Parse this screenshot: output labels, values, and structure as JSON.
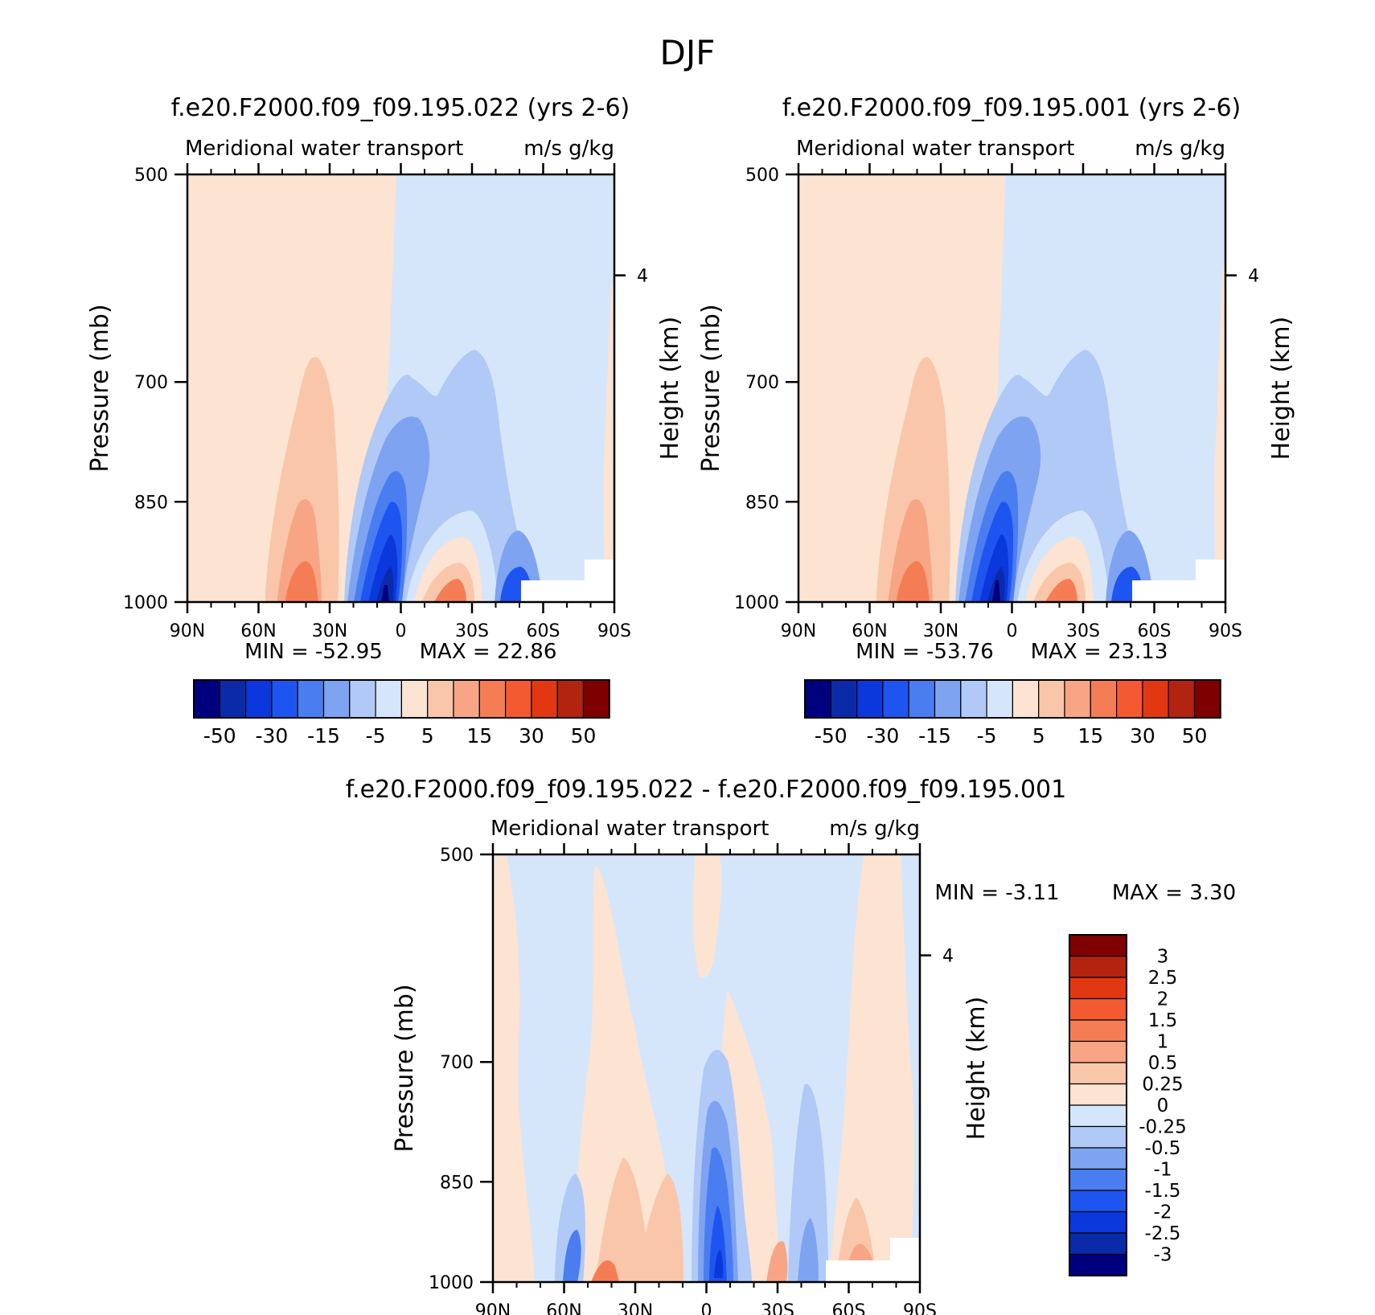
{
  "page": {
    "title": "DJF",
    "colors": {
      "blues": [
        "#00007f",
        "#0a2aaa",
        "#0a38dc",
        "#1e55f0",
        "#4a7df0",
        "#7ea3f0",
        "#b0c9f7",
        "#d6e6fa"
      ],
      "reds": [
        "#fce3d2",
        "#f9c6aa",
        "#f7a585",
        "#f57d55",
        "#f45a32",
        "#e23812",
        "#b22410",
        "#7f0000"
      ],
      "white": "#ffffff"
    }
  },
  "panels": [
    {
      "id": "control",
      "title": "f.e20.F2000.f09_f09.195.022 (yrs 2-6)",
      "left_label": "Meridional water transport",
      "right_label": "m/s g/kg",
      "min_label": "MIN = -52.95",
      "max_label": "MAX = 22.86",
      "ylabel": "Pressure (mb)",
      "y2label": "Height (km)",
      "colorbar_labels": [
        "-50",
        "-30",
        "-15",
        "-5",
        "5",
        "15",
        "30",
        "50"
      ]
    },
    {
      "id": "test",
      "title": "f.e20.F2000.f09_f09.195.001 (yrs 2-6)",
      "left_label": "Meridional water transport",
      "right_label": "m/s g/kg",
      "min_label": "MIN = -53.76",
      "max_label": "MAX = 23.13",
      "ylabel": "Pressure (mb)",
      "y2label": "Height (km)",
      "colorbar_labels": [
        "-50",
        "-30",
        "-15",
        "-5",
        "5",
        "15",
        "30",
        "50"
      ]
    },
    {
      "id": "difference",
      "title": "f.e20.F2000.f09_f09.195.022 - f.e20.F2000.f09_f09.195.001",
      "left_label": "Meridional water transport",
      "right_label": "m/s g/kg",
      "min_label": "MIN = -3.11",
      "max_label": "MAX = 3.30",
      "ylabel": "Pressure (mb)",
      "y2label": "Height (km)",
      "colorbar_labels": [
        "3",
        "2.5",
        "2",
        "1.5",
        "1",
        "0.5",
        "0.25",
        "0",
        "-0.25",
        "-0.5",
        "-1",
        "-1.5",
        "-2",
        "-2.5",
        "-3"
      ]
    }
  ],
  "chart_data": [
    {
      "type": "heatmap",
      "title": "f.e20.F2000.f09_f09.195.022 (yrs 2-6)",
      "ylabel": "Pressure (mb)",
      "y2label": "Height (km)",
      "x_ticks": [
        "90N",
        "60N",
        "30N",
        "0",
        "30S",
        "60S",
        "90S"
      ],
      "x_values": [
        90,
        60,
        30,
        0,
        -30,
        -60,
        -90
      ],
      "y_ticks": [
        "500",
        "700",
        "850",
        "1000"
      ],
      "y_values": [
        500,
        700,
        850,
        1000
      ],
      "y2_ticks": [
        "4"
      ],
      "levels": [
        -50,
        -40,
        -30,
        -20,
        -15,
        -10,
        -5,
        0,
        5,
        10,
        15,
        20,
        30,
        40,
        50
      ],
      "min": -52.95,
      "max": 22.86,
      "features": [
        {
          "lat": 85,
          "p_top": 500,
          "p_bottom": 1000,
          "value": 1,
          "note": "weak positive north of about 10S above 700 mb"
        },
        {
          "lat": -40,
          "p_top": 500,
          "p_bottom": 1000,
          "value": -1,
          "note": "weak negative south of about 10S"
        },
        {
          "lat": 40,
          "p_top": 720,
          "p_bottom": 1000,
          "value": 8
        },
        {
          "lat": 43,
          "p_top": 880,
          "p_bottom": 1000,
          "value": 16
        },
        {
          "lat": 10,
          "p_top": 710,
          "p_bottom": 1000,
          "value": -10
        },
        {
          "lat": 10,
          "p_top": 830,
          "p_bottom": 1000,
          "value": -30
        },
        {
          "lat": 10,
          "p_top": 950,
          "p_bottom": 1000,
          "value": -50
        },
        {
          "lat": -38,
          "p_top": 700,
          "p_bottom": 1000,
          "value": -8
        },
        {
          "lat": -20,
          "p_top": 925,
          "p_bottom": 1000,
          "value": 20
        },
        {
          "lat": -45,
          "p_top": 925,
          "p_bottom": 1000,
          "value": -20
        }
      ]
    },
    {
      "type": "heatmap",
      "title": "f.e20.F2000.f09_f09.195.001 (yrs 2-6)",
      "ylabel": "Pressure (mb)",
      "y2label": "Height (km)",
      "x_ticks": [
        "90N",
        "60N",
        "30N",
        "0",
        "30S",
        "60S",
        "90S"
      ],
      "x_values": [
        90,
        60,
        30,
        0,
        -30,
        -60,
        -90
      ],
      "y_ticks": [
        "500",
        "700",
        "850",
        "1000"
      ],
      "y_values": [
        500,
        700,
        850,
        1000
      ],
      "y2_ticks": [
        "4"
      ],
      "levels": [
        -50,
        -40,
        -30,
        -20,
        -15,
        -10,
        -5,
        0,
        5,
        10,
        15,
        20,
        30,
        40,
        50
      ],
      "min": -53.76,
      "max": 23.13,
      "features": [
        {
          "lat": 85,
          "p_top": 500,
          "p_bottom": 1000,
          "value": 1
        },
        {
          "lat": -40,
          "p_top": 500,
          "p_bottom": 1000,
          "value": -1
        },
        {
          "lat": 40,
          "p_top": 720,
          "p_bottom": 1000,
          "value": 8
        },
        {
          "lat": 43,
          "p_top": 880,
          "p_bottom": 1000,
          "value": 16
        },
        {
          "lat": 10,
          "p_top": 710,
          "p_bottom": 1000,
          "value": -10
        },
        {
          "lat": 10,
          "p_top": 830,
          "p_bottom": 1000,
          "value": -30
        },
        {
          "lat": 10,
          "p_top": 950,
          "p_bottom": 1000,
          "value": -50
        },
        {
          "lat": -38,
          "p_top": 700,
          "p_bottom": 1000,
          "value": -8
        },
        {
          "lat": -20,
          "p_top": 925,
          "p_bottom": 1000,
          "value": 20
        },
        {
          "lat": -45,
          "p_top": 925,
          "p_bottom": 1000,
          "value": -20
        }
      ]
    },
    {
      "type": "heatmap",
      "title": "f.e20.F2000.f09_f09.195.022 - f.e20.F2000.f09_f09.195.001",
      "ylabel": "Pressure (mb)",
      "y2label": "Height (km)",
      "x_ticks": [
        "90N",
        "60N",
        "30N",
        "0",
        "30S",
        "60S",
        "90S"
      ],
      "x_values": [
        90,
        60,
        30,
        0,
        -30,
        -60,
        -90
      ],
      "y_ticks": [
        "500",
        "700",
        "850",
        "1000"
      ],
      "y_values": [
        500,
        700,
        850,
        1000
      ],
      "y2_ticks": [
        "4"
      ],
      "levels": [
        -3,
        -2.5,
        -2,
        -1.5,
        -1,
        -0.5,
        -0.25,
        0,
        0.25,
        0.5,
        1,
        1.5,
        2,
        2.5,
        3
      ],
      "min": -3.11,
      "max": 3.3,
      "features": [
        {
          "lat": 0,
          "p_top": 500,
          "p_bottom": 1000,
          "value": -0.1
        },
        {
          "lat": 83,
          "p_top": 500,
          "p_bottom": 1000,
          "value": 0.1
        },
        {
          "lat": 35,
          "p_top": 540,
          "p_bottom": 1000,
          "value": 0.1
        },
        {
          "lat": 0,
          "p_top": 500,
          "p_bottom": 750,
          "value": 0.1
        },
        {
          "lat": -67,
          "p_top": 500,
          "p_bottom": 1000,
          "value": 0.1
        },
        {
          "lat": 33,
          "p_top": 860,
          "p_bottom": 1000,
          "value": 0.4
        },
        {
          "lat": 50,
          "p_top": 890,
          "p_bottom": 1000,
          "value": -0.6
        },
        {
          "lat": -3,
          "p_top": 730,
          "p_bottom": 1000,
          "value": -0.6
        },
        {
          "lat": -3,
          "p_top": 810,
          "p_bottom": 1000,
          "value": -1.3
        },
        {
          "lat": -3,
          "p_top": 930,
          "p_bottom": 1000,
          "value": -2.3
        },
        {
          "lat": -17,
          "p_top": 870,
          "p_bottom": 1000,
          "value": 0.3
        },
        {
          "lat": -40,
          "p_top": 770,
          "p_bottom": 1000,
          "value": -0.3
        },
        {
          "lat": -64,
          "p_top": 925,
          "p_bottom": 1000,
          "value": 1.2
        }
      ]
    }
  ]
}
